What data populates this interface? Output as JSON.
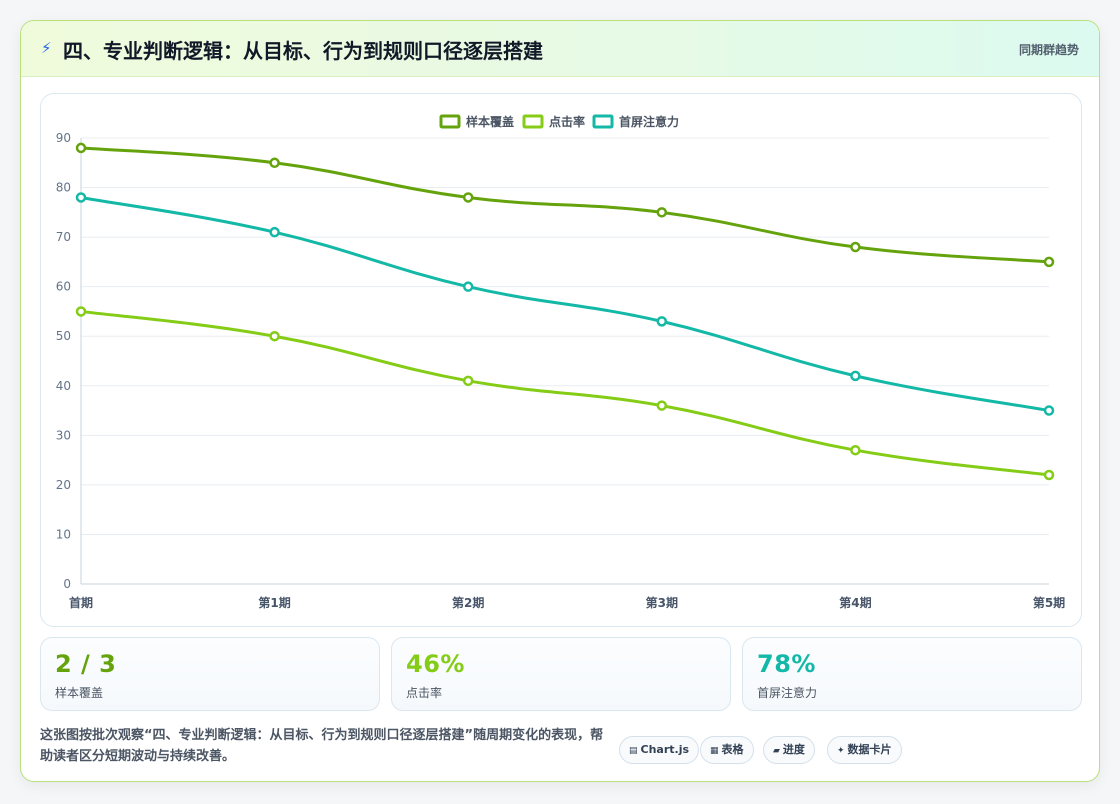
{
  "header": {
    "icon": "lightning-icon",
    "title": "四、专业判断逻辑：从目标、行为到规则口径逐层搭建",
    "right_label": "同期群趋势"
  },
  "chart_data": {
    "type": "line",
    "categories": [
      "首期",
      "第1期",
      "第2期",
      "第3期",
      "第4期",
      "第5期"
    ],
    "series": [
      {
        "name": "样本覆盖",
        "values": [
          88,
          85,
          78,
          75,
          68,
          65
        ],
        "color": "#65a30d"
      },
      {
        "name": "点击率",
        "values": [
          55,
          50,
          41,
          36,
          27,
          22
        ],
        "color": "#84cc16"
      },
      {
        "name": "首屏注意力",
        "values": [
          78,
          71,
          60,
          53,
          42,
          35
        ],
        "color": "#14b8a6"
      }
    ],
    "y_ticks": [
      "0",
      "10",
      "20",
      "30",
      "40",
      "50",
      "60",
      "70",
      "80",
      "90"
    ],
    "ylim": [
      0,
      90
    ],
    "grid": true,
    "legend_position": "top-center"
  },
  "stats": [
    {
      "value": "2 / 3",
      "label": "样本覆盖",
      "color": "#65a30d"
    },
    {
      "value": "46%",
      "label": "点击率",
      "color": "#84cc16"
    },
    {
      "value": "78%",
      "label": "首屏注意力",
      "color": "#14b8a6"
    }
  ],
  "description": "这张图按批次观察“四、专业判断逻辑：从目标、行为到规则口径逐层搭建”随周期变化的表现，帮助读者区分短期波动与持续改善。",
  "tags": [
    {
      "icon": "▤",
      "label": "Chart.js"
    },
    {
      "icon": "▦",
      "label": "表格"
    },
    {
      "icon": "▰",
      "label": "进度"
    },
    {
      "icon": "✦",
      "label": "数据卡片"
    }
  ]
}
